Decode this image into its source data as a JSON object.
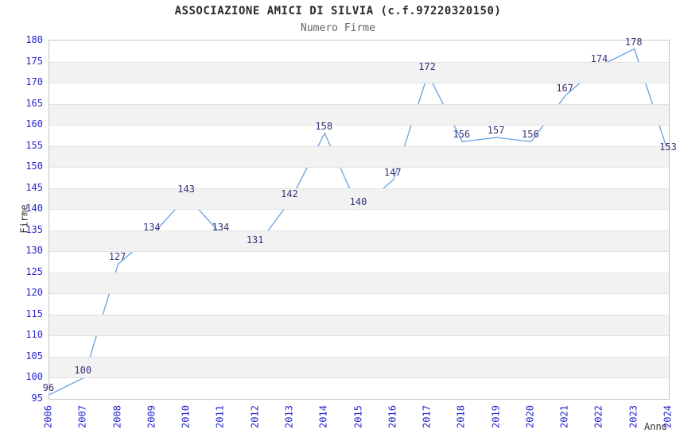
{
  "chart_data": {
    "type": "line",
    "title": "ASSOCIAZIONE AMICI DI SILVIA (c.f.97220320150)",
    "subtitle": "Numero Firme",
    "xlabel": "Anno",
    "ylabel": "Firme",
    "x": [
      2006,
      2007,
      2008,
      2009,
      2010,
      2011,
      2012,
      2013,
      2014,
      2015,
      2016,
      2017,
      2018,
      2019,
      2020,
      2021,
      2022,
      2023,
      2024
    ],
    "series": [
      {
        "name": "Numero Firme",
        "values": [
          96,
          100,
          127,
          134,
          143,
          134,
          131,
          142,
          158,
          140,
          147,
          172,
          156,
          157,
          156,
          167,
          174,
          178,
          153
        ]
      }
    ],
    "ylim": [
      95,
      180
    ],
    "ytick_step": 5,
    "grid": "horizontal-alternating-bands",
    "legend": "none",
    "colors": {
      "line": "#72a5e3",
      "band": "#f2f2f2",
      "gridline": "#e2e2e2",
      "plot_border": "#c6c6c6",
      "tick_label": "#2626cf",
      "point_label": "#333377",
      "title": "#2b2b2b",
      "subtitle": "#666666",
      "axis_title": "#333333"
    }
  }
}
